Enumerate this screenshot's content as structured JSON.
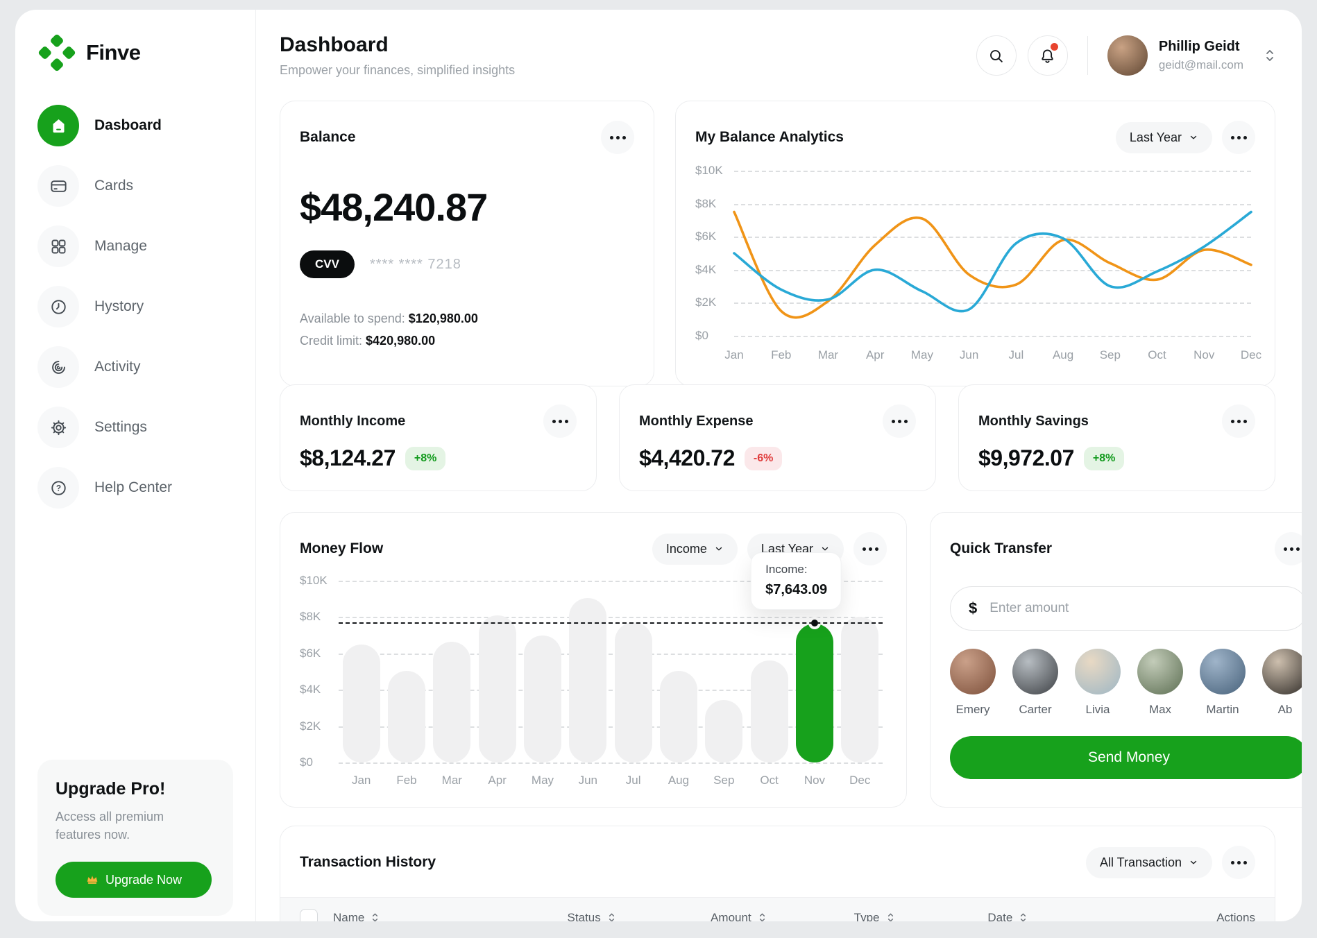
{
  "app": {
    "brand": "Finve"
  },
  "sidebar": {
    "items": [
      {
        "label": "Dasboard",
        "icon": "home-icon",
        "active": true
      },
      {
        "label": "Cards",
        "icon": "cards-icon",
        "active": false
      },
      {
        "label": "Manage",
        "icon": "grid-icon",
        "active": false
      },
      {
        "label": "Hystory",
        "icon": "clock-icon",
        "active": false
      },
      {
        "label": "Activity",
        "icon": "activity-icon",
        "active": false
      },
      {
        "label": "Settings",
        "icon": "gear-icon",
        "active": false
      },
      {
        "label": "Help Center",
        "icon": "help-icon",
        "active": false
      }
    ],
    "upgrade": {
      "title": "Upgrade Pro!",
      "body": "Access all premium features now.",
      "button": "Upgrade Now",
      "button_icon": "crown-icon"
    }
  },
  "header": {
    "title": "Dashboard",
    "subtitle": "Empower your finances, simplified insights",
    "user": {
      "name": "Phillip Geidt",
      "email": "geidt@mail.com"
    }
  },
  "balance": {
    "title": "Balance",
    "amount": "$48,240.87",
    "cvv_label": "CVV",
    "card_mask": "**** **** 7218",
    "available_label": "Available to spend:",
    "available_value": "$120,980.00",
    "credit_label": "Credit limit:",
    "credit_value": "$420,980.00"
  },
  "analytics": {
    "title": "My Balance Analytics",
    "range_label": "Last Year"
  },
  "stats": [
    {
      "title": "Monthly Income",
      "value": "$8,124.27",
      "delta": "+8%",
      "trend": "up"
    },
    {
      "title": "Monthly Expense",
      "value": "$4,420.72",
      "delta": "-6%",
      "trend": "down"
    },
    {
      "title": "Monthly Savings",
      "value": "$9,972.07",
      "delta": "+8%",
      "trend": "up"
    }
  ],
  "money_flow": {
    "title": "Money Flow",
    "metric_label": "Income",
    "range_label": "Last Year",
    "tooltip": {
      "label": "Income:",
      "value": "$7,643.09"
    }
  },
  "quick_transfer": {
    "title": "Quick Transfer",
    "currency": "$",
    "placeholder": "Enter amount",
    "contacts": [
      {
        "name": "Emery",
        "tones": [
          "#caa089",
          "#7c4f3a"
        ]
      },
      {
        "name": "Carter",
        "tones": [
          "#b7bdc2",
          "#3c3f43"
        ]
      },
      {
        "name": "Livia",
        "tones": [
          "#e8d9c4",
          "#9db6c4"
        ]
      },
      {
        "name": "Max",
        "tones": [
          "#c3ccb9",
          "#5c6e52"
        ]
      },
      {
        "name": "Martin",
        "tones": [
          "#9fb4c9",
          "#47617a"
        ]
      },
      {
        "name": "Ab",
        "tones": [
          "#cdbfae",
          "#2e2a26"
        ]
      }
    ],
    "send_label": "Send Money"
  },
  "transactions": {
    "title": "Transaction History",
    "filter_label": "All Transaction",
    "select_all": false,
    "columns": [
      {
        "label": "Name",
        "sortable": true
      },
      {
        "label": "Status",
        "sortable": true
      },
      {
        "label": "Amount",
        "sortable": true
      },
      {
        "label": "Type",
        "sortable": true
      },
      {
        "label": "Date",
        "sortable": true
      },
      {
        "label": "Actions",
        "sortable": false
      }
    ]
  },
  "colors": {
    "brand_green": "#17A11C",
    "line_orange": "#F09417",
    "line_blue": "#29A9D6",
    "bar_default": "#F0F0F1",
    "bar_highlight": "#17A11C",
    "badge_up_text": "#119A1C",
    "badge_down_text": "#E03B3B",
    "notification_dot": "#E8442E"
  },
  "chart_data": [
    {
      "id": "balance_analytics",
      "type": "line",
      "title": "My Balance Analytics",
      "range_label": "Last Year",
      "x": [
        "Jan",
        "Feb",
        "Mar",
        "Apr",
        "May",
        "Jun",
        "Jul",
        "Aug",
        "Sep",
        "Oct",
        "Nov",
        "Dec"
      ],
      "ylim": [
        0,
        10000
      ],
      "yticks": [
        10000,
        8000,
        6000,
        4000,
        2000,
        0
      ],
      "ytick_labels": [
        "$10K",
        "$8K",
        "$6K",
        "$4K",
        "$2K",
        "$0"
      ],
      "grid": "dashed-horizontal",
      "legend": false,
      "series": [
        {
          "name": "orange",
          "color": "#F09417",
          "values": [
            7500,
            1500,
            2100,
            5500,
            7100,
            3700,
            3100,
            5800,
            4400,
            3400,
            5200,
            4300
          ]
        },
        {
          "name": "blue",
          "color": "#29A9D6",
          "values": [
            5000,
            2800,
            2200,
            4000,
            2700,
            1600,
            5600,
            5900,
            3000,
            3900,
            5400,
            7500
          ]
        }
      ]
    },
    {
      "id": "money_flow",
      "type": "bar",
      "title": "Money Flow",
      "metric": "Income",
      "range_label": "Last Year",
      "categories": [
        "Jan",
        "Feb",
        "Mar",
        "Apr",
        "May",
        "Jun",
        "Jul",
        "Aug",
        "Sep",
        "Oct",
        "Nov",
        "Dec"
      ],
      "values": [
        6500,
        5050,
        6650,
        8100,
        7000,
        9050,
        7700,
        5050,
        3450,
        5600,
        7643,
        8000
      ],
      "ylim": [
        0,
        10000
      ],
      "yticks": [
        10000,
        8000,
        6000,
        4000,
        2000,
        0
      ],
      "ytick_labels": [
        "$10K",
        "$8K",
        "$6K",
        "$4K",
        "$2K",
        "$0"
      ],
      "grid": "dashed-horizontal",
      "highlight_index": 10,
      "highlight_label": "Income:",
      "highlight_value_label": "$7,643.09",
      "reference_line": 7643
    }
  ]
}
